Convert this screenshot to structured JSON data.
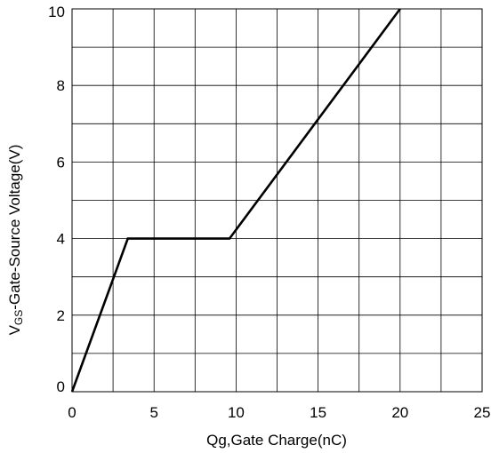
{
  "chart_data": {
    "type": "line",
    "xlabel": "Qg,Gate Charge(nC)",
    "ylabel": {
      "prefix": "V",
      "subscript": "GS",
      "suffix": "-Gate-Source Voltage(V)"
    },
    "xlim": [
      0,
      25
    ],
    "ylim": [
      0,
      10
    ],
    "x_major_ticks": [
      0,
      5,
      10,
      15,
      20,
      25
    ],
    "y_major_ticks": [
      0,
      2,
      4,
      6,
      8,
      10
    ],
    "x_grid": [
      0,
      2.5,
      5,
      7.5,
      10,
      12.5,
      15,
      17.5,
      20,
      22.5,
      25
    ],
    "y_grid": [
      0,
      1,
      2,
      3,
      4,
      5,
      6,
      7,
      8,
      9,
      10
    ],
    "grid": true,
    "series": [
      {
        "color": "#000000",
        "points": [
          [
            0,
            0
          ],
          [
            3.4,
            4
          ],
          [
            9.6,
            4
          ],
          [
            20,
            10
          ]
        ]
      }
    ]
  }
}
